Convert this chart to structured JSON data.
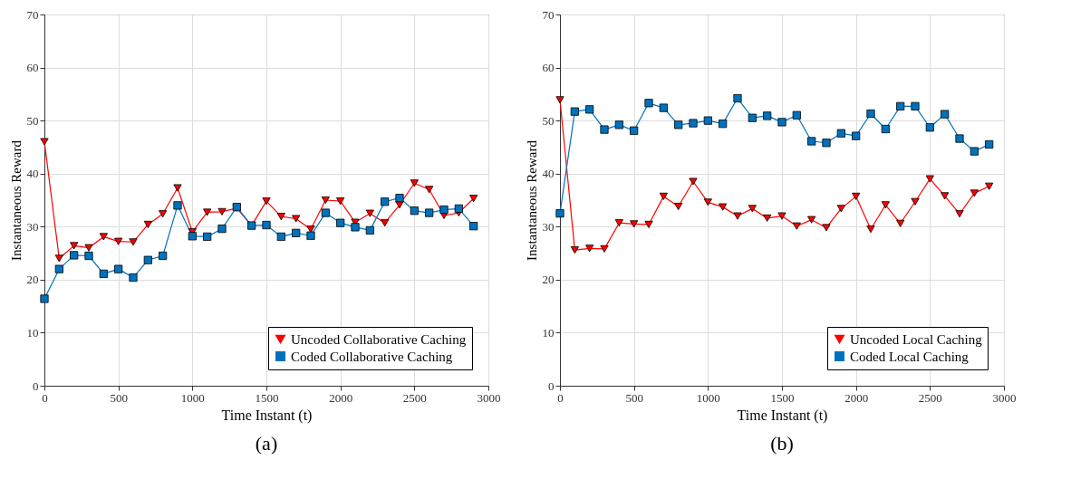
{
  "chart_data": [
    {
      "type": "line",
      "xlabel": "Time Instant (t)",
      "ylabel": "Instantaneous Reward",
      "annotations": [
        "(a)"
      ],
      "xlim": [
        0,
        3000
      ],
      "xticks": [
        0,
        500,
        1000,
        1500,
        2000,
        2500,
        3000
      ],
      "ylim": [
        0,
        70
      ],
      "yticks": [
        0,
        10,
        20,
        30,
        40,
        50,
        60,
        70
      ],
      "grid": true,
      "legend": "bottom right",
      "x": [
        0,
        100,
        200,
        300,
        400,
        500,
        600,
        700,
        800,
        900,
        1000,
        1100,
        1200,
        1300,
        1400,
        1500,
        1600,
        1700,
        1800,
        1900,
        2000,
        2100,
        2200,
        2300,
        2400,
        2500,
        2600,
        2700,
        2800,
        2900
      ],
      "series": [
        {
          "name": "Uncoded Collaborative Caching",
          "color": "#ff0000",
          "marker": "triangle",
          "values": [
            46,
            24.0,
            26.4,
            26.0,
            28.1,
            27.2,
            27.1,
            30.4,
            32.4,
            37.3,
            29.0,
            32.7,
            32.8,
            33.5,
            30.2,
            34.8,
            31.9,
            31.5,
            29.5,
            35.0,
            34.8,
            30.8,
            32.5,
            30.7,
            34.1,
            38.2,
            37.0,
            32.1,
            32.6,
            35.3
          ]
        },
        {
          "name": "Coded Collaborative Caching",
          "color": "#0072bd",
          "marker": "square",
          "values": [
            16.4,
            22.0,
            24.6,
            24.5,
            21.1,
            22.0,
            20.4,
            23.7,
            24.5,
            34.0,
            28.2,
            28.1,
            29.6,
            33.7,
            30.2,
            30.3,
            28.1,
            28.8,
            28.3,
            32.6,
            30.7,
            29.9,
            29.3,
            34.7,
            35.4,
            33.0,
            32.6,
            33.2,
            33.4,
            30.1
          ]
        }
      ]
    },
    {
      "type": "line",
      "xlabel": "Time Instant (t)",
      "ylabel": "Instantaneous Reward",
      "annotations": [
        "(b)"
      ],
      "xlim": [
        0,
        3000
      ],
      "xticks": [
        0,
        500,
        1000,
        1500,
        2000,
        2500,
        3000
      ],
      "ylim": [
        0,
        70
      ],
      "yticks": [
        0,
        10,
        20,
        30,
        40,
        50,
        60,
        70
      ],
      "grid": true,
      "legend": "bottom right",
      "x": [
        0,
        100,
        200,
        300,
        400,
        500,
        600,
        700,
        800,
        900,
        1000,
        1100,
        1200,
        1300,
        1400,
        1500,
        1600,
        1700,
        1800,
        1900,
        2000,
        2100,
        2200,
        2300,
        2400,
        2500,
        2600,
        2700,
        2800,
        2900
      ],
      "series": [
        {
          "name": "Uncoded Local Caching",
          "color": "#ff0000",
          "marker": "triangle",
          "values": [
            53.9,
            25.6,
            25.9,
            25.8,
            30.7,
            30.5,
            30.4,
            35.7,
            33.8,
            38.5,
            34.6,
            33.7,
            32.0,
            33.4,
            31.6,
            32.0,
            30.1,
            31.3,
            29.8,
            33.4,
            35.7,
            29.5,
            34.1,
            30.6,
            34.7,
            39.0,
            35.8,
            32.4,
            36.3,
            37.6
          ]
        },
        {
          "name": "Coded Local Caching",
          "color": "#0072bd",
          "marker": "square",
          "values": [
            32.5,
            51.7,
            52.1,
            48.3,
            49.2,
            48.1,
            53.3,
            52.4,
            49.2,
            49.5,
            50.0,
            49.4,
            54.2,
            50.5,
            50.9,
            49.7,
            51.0,
            46.1,
            45.8,
            47.6,
            47.1,
            51.3,
            48.4,
            52.7,
            52.7,
            48.7,
            51.2,
            46.6,
            44.2,
            45.5
          ]
        }
      ]
    }
  ]
}
